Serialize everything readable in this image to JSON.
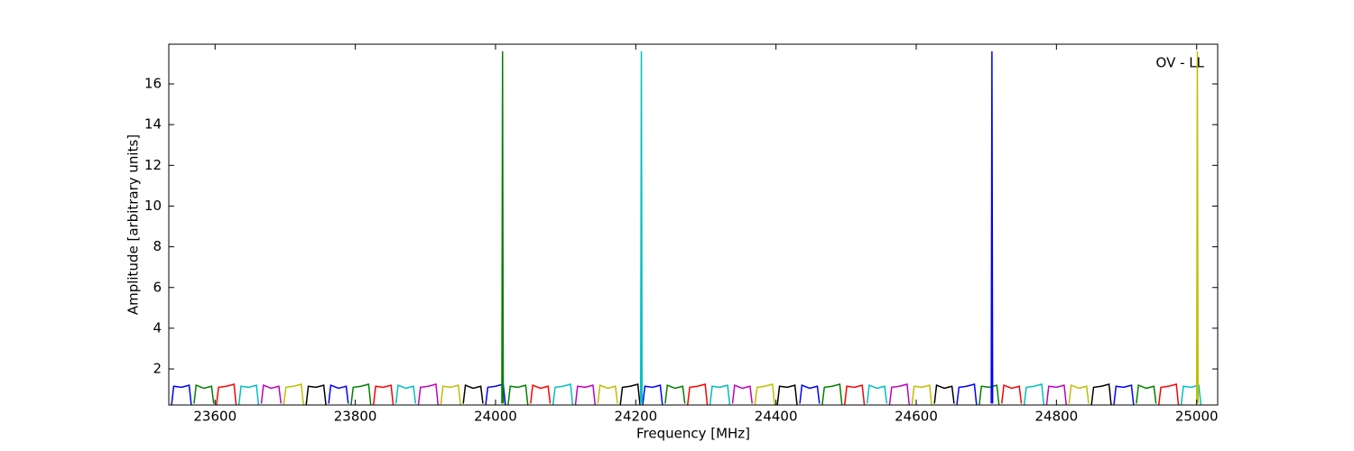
{
  "chart_data": {
    "type": "line",
    "xlabel": "Frequency [MHz]",
    "ylabel": "Amplitude [arbitrary units]",
    "annotation": "OV - LL",
    "xlim": [
      23534,
      25030
    ],
    "ylim": [
      0.23,
      17.95
    ],
    "xticks": [
      23600,
      23800,
      24000,
      24200,
      24400,
      24600,
      24800,
      25000
    ],
    "yticks": [
      2,
      4,
      6,
      8,
      10,
      12,
      14,
      16
    ],
    "series": [
      {
        "color": "#0000ff",
        "x": [
          23538,
          23541,
          23552,
          23563,
          23566
        ],
        "values": [
          0.25,
          1.15,
          1.1,
          1.2,
          0.25
        ]
      },
      {
        "color": "#008000",
        "x": [
          23570,
          23573,
          23584,
          23595,
          23598
        ],
        "values": [
          0.3,
          1.2,
          1.05,
          1.15,
          0.3
        ]
      },
      {
        "color": "#ff0000",
        "x": [
          23602,
          23605,
          23616,
          23627,
          23630
        ],
        "values": [
          0.25,
          1.1,
          1.15,
          1.25,
          0.25
        ]
      },
      {
        "color": "#00bfbf",
        "x": [
          23634,
          23637,
          23648,
          23659,
          23662
        ],
        "values": [
          0.25,
          1.15,
          1.1,
          1.2,
          0.25
        ]
      },
      {
        "color": "#bf00bf",
        "x": [
          23666,
          23669,
          23680,
          23691,
          23694
        ],
        "values": [
          0.3,
          1.2,
          1.05,
          1.15,
          0.3
        ]
      },
      {
        "color": "#bfbf00",
        "x": [
          23698,
          23701,
          23712,
          23723,
          23726
        ],
        "values": [
          0.25,
          1.1,
          1.15,
          1.25,
          0.25
        ]
      },
      {
        "color": "#000000",
        "x": [
          23730,
          23733,
          23744,
          23755,
          23758
        ],
        "values": [
          0.25,
          1.15,
          1.1,
          1.2,
          0.25
        ]
      },
      {
        "color": "#0000ff",
        "x": [
          23762,
          23765,
          23776,
          23787,
          23790
        ],
        "values": [
          0.3,
          1.2,
          1.05,
          1.15,
          0.3
        ]
      },
      {
        "color": "#008000",
        "x": [
          23794,
          23797,
          23808,
          23819,
          23822
        ],
        "values": [
          0.25,
          1.1,
          1.15,
          1.25,
          0.25
        ]
      },
      {
        "color": "#ff0000",
        "x": [
          23826,
          23829,
          23840,
          23851,
          23854
        ],
        "values": [
          0.25,
          1.15,
          1.1,
          1.2,
          0.25
        ]
      },
      {
        "color": "#00bfbf",
        "x": [
          23858,
          23861,
          23872,
          23883,
          23886
        ],
        "values": [
          0.3,
          1.2,
          1.05,
          1.15,
          0.3
        ]
      },
      {
        "color": "#bf00bf",
        "x": [
          23890,
          23893,
          23904,
          23915,
          23918
        ],
        "values": [
          0.25,
          1.1,
          1.15,
          1.25,
          0.25
        ]
      },
      {
        "color": "#bfbf00",
        "x": [
          23922,
          23925,
          23936,
          23947,
          23950
        ],
        "values": [
          0.25,
          1.15,
          1.1,
          1.2,
          0.25
        ]
      },
      {
        "color": "#000000",
        "x": [
          23954,
          23957,
          23968,
          23979,
          23982
        ],
        "values": [
          0.3,
          1.2,
          1.05,
          1.15,
          0.3
        ]
      },
      {
        "color": "#0000ff",
        "x": [
          23986,
          23989,
          24000,
          24011,
          24014
        ],
        "values": [
          0.25,
          1.1,
          1.15,
          1.25,
          0.25
        ]
      },
      {
        "color": "#008000",
        "x": [
          24018,
          24021,
          24032,
          24043,
          24046
        ],
        "values": [
          0.25,
          1.15,
          1.1,
          1.2,
          0.25
        ]
      },
      {
        "color": "#ff0000",
        "x": [
          24050,
          24053,
          24064,
          24075,
          24078
        ],
        "values": [
          0.3,
          1.2,
          1.05,
          1.15,
          0.3
        ]
      },
      {
        "color": "#00bfbf",
        "x": [
          24082,
          24085,
          24096,
          24107,
          24110
        ],
        "values": [
          0.25,
          1.1,
          1.15,
          1.25,
          0.25
        ]
      },
      {
        "color": "#bf00bf",
        "x": [
          24114,
          24117,
          24128,
          24139,
          24142
        ],
        "values": [
          0.25,
          1.15,
          1.1,
          1.2,
          0.25
        ]
      },
      {
        "color": "#bfbf00",
        "x": [
          24146,
          24149,
          24160,
          24171,
          24174
        ],
        "values": [
          0.3,
          1.2,
          1.05,
          1.15,
          0.3
        ]
      },
      {
        "color": "#000000",
        "x": [
          24178,
          24181,
          24192,
          24203,
          24206
        ],
        "values": [
          0.25,
          1.1,
          1.15,
          1.25,
          0.25
        ]
      },
      {
        "color": "#0000ff",
        "x": [
          24210,
          24213,
          24224,
          24235,
          24238
        ],
        "values": [
          0.25,
          1.15,
          1.1,
          1.2,
          0.25
        ]
      },
      {
        "color": "#008000",
        "x": [
          24242,
          24245,
          24256,
          24267,
          24270
        ],
        "values": [
          0.3,
          1.2,
          1.05,
          1.15,
          0.3
        ]
      },
      {
        "color": "#ff0000",
        "x": [
          24274,
          24277,
          24288,
          24299,
          24302
        ],
        "values": [
          0.25,
          1.1,
          1.15,
          1.25,
          0.25
        ]
      },
      {
        "color": "#00bfbf",
        "x": [
          24306,
          24309,
          24320,
          24331,
          24334
        ],
        "values": [
          0.25,
          1.15,
          1.1,
          1.2,
          0.25
        ]
      },
      {
        "color": "#bf00bf",
        "x": [
          24338,
          24341,
          24352,
          24363,
          24366
        ],
        "values": [
          0.3,
          1.2,
          1.05,
          1.15,
          0.3
        ]
      },
      {
        "color": "#bfbf00",
        "x": [
          24370,
          24373,
          24384,
          24395,
          24398
        ],
        "values": [
          0.25,
          1.1,
          1.15,
          1.25,
          0.25
        ]
      },
      {
        "color": "#000000",
        "x": [
          24402,
          24405,
          24416,
          24427,
          24430
        ],
        "values": [
          0.25,
          1.15,
          1.1,
          1.2,
          0.25
        ]
      },
      {
        "color": "#0000ff",
        "x": [
          24434,
          24437,
          24448,
          24459,
          24462
        ],
        "values": [
          0.3,
          1.2,
          1.05,
          1.15,
          0.3
        ]
      },
      {
        "color": "#008000",
        "x": [
          24466,
          24469,
          24480,
          24491,
          24494
        ],
        "values": [
          0.25,
          1.1,
          1.15,
          1.25,
          0.25
        ]
      },
      {
        "color": "#ff0000",
        "x": [
          24498,
          24501,
          24512,
          24523,
          24526
        ],
        "values": [
          0.25,
          1.15,
          1.1,
          1.2,
          0.25
        ]
      },
      {
        "color": "#00bfbf",
        "x": [
          24530,
          24533,
          24544,
          24555,
          24558
        ],
        "values": [
          0.3,
          1.2,
          1.05,
          1.15,
          0.3
        ]
      },
      {
        "color": "#bf00bf",
        "x": [
          24562,
          24565,
          24576,
          24587,
          24590
        ],
        "values": [
          0.25,
          1.1,
          1.15,
          1.25,
          0.25
        ]
      },
      {
        "color": "#bfbf00",
        "x": [
          24594,
          24597,
          24608,
          24619,
          24622
        ],
        "values": [
          0.25,
          1.15,
          1.1,
          1.2,
          0.25
        ]
      },
      {
        "color": "#000000",
        "x": [
          24626,
          24629,
          24640,
          24651,
          24654
        ],
        "values": [
          0.3,
          1.2,
          1.05,
          1.15,
          0.3
        ]
      },
      {
        "color": "#0000ff",
        "x": [
          24658,
          24661,
          24672,
          24683,
          24686
        ],
        "values": [
          0.25,
          1.1,
          1.15,
          1.25,
          0.25
        ]
      },
      {
        "color": "#008000",
        "x": [
          24690,
          24693,
          24704,
          24715,
          24718
        ],
        "values": [
          0.25,
          1.15,
          1.1,
          1.2,
          0.25
        ]
      },
      {
        "color": "#ff0000",
        "x": [
          24722,
          24725,
          24736,
          24747,
          24750
        ],
        "values": [
          0.3,
          1.2,
          1.05,
          1.15,
          0.3
        ]
      },
      {
        "color": "#00bfbf",
        "x": [
          24754,
          24757,
          24768,
          24779,
          24782
        ],
        "values": [
          0.25,
          1.1,
          1.15,
          1.25,
          0.25
        ]
      },
      {
        "color": "#bf00bf",
        "x": [
          24786,
          24789,
          24800,
          24811,
          24814
        ],
        "values": [
          0.25,
          1.15,
          1.1,
          1.2,
          0.25
        ]
      },
      {
        "color": "#bfbf00",
        "x": [
          24818,
          24821,
          24832,
          24843,
          24846
        ],
        "values": [
          0.3,
          1.2,
          1.05,
          1.15,
          0.3
        ]
      },
      {
        "color": "#000000",
        "x": [
          24850,
          24853,
          24864,
          24875,
          24878
        ],
        "values": [
          0.25,
          1.1,
          1.15,
          1.25,
          0.25
        ]
      },
      {
        "color": "#0000ff",
        "x": [
          24882,
          24885,
          24896,
          24907,
          24910
        ],
        "values": [
          0.25,
          1.15,
          1.1,
          1.2,
          0.25
        ]
      },
      {
        "color": "#008000",
        "x": [
          24914,
          24917,
          24928,
          24939,
          24942
        ],
        "values": [
          0.3,
          1.2,
          1.05,
          1.15,
          0.3
        ]
      },
      {
        "color": "#ff0000",
        "x": [
          24946,
          24949,
          24960,
          24971,
          24974
        ],
        "values": [
          0.25,
          1.1,
          1.15,
          1.25,
          0.25
        ]
      },
      {
        "color": "#00bfbf",
        "x": [
          24978,
          24981,
          24992,
          25003,
          25006
        ],
        "values": [
          0.25,
          1.15,
          1.1,
          1.2,
          0.25
        ]
      },
      {
        "color": "#008000",
        "x": [
          24009,
          24010,
          24011
        ],
        "values": [
          0.3,
          17.6,
          0.3
        ]
      },
      {
        "color": "#00bfbf",
        "x": [
          24207,
          24208,
          24209
        ],
        "values": [
          0.3,
          17.6,
          0.3
        ]
      },
      {
        "color": "#0000ff",
        "x": [
          24707,
          24708,
          24709
        ],
        "values": [
          0.3,
          17.6,
          0.3
        ]
      },
      {
        "color": "#bfbf00",
        "x": [
          25000,
          25001,
          25002
        ],
        "values": [
          0.3,
          17.6,
          0.3
        ]
      }
    ]
  }
}
